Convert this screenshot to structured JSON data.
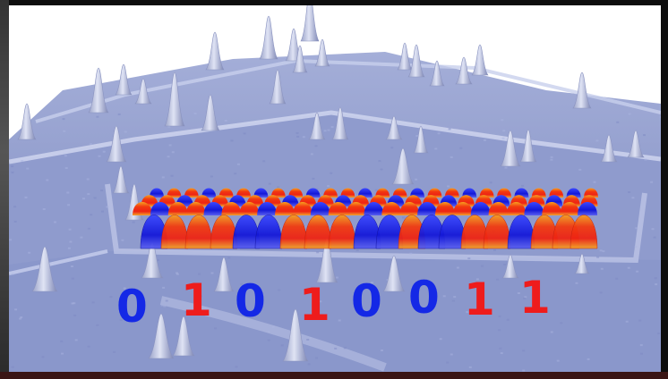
{
  "bits": [
    {
      "value": "0",
      "color": "#1428e6"
    },
    {
      "value": "1",
      "color": "#ee1c1c"
    },
    {
      "value": "0",
      "color": "#1428e6"
    },
    {
      "value": "1",
      "color": "#ee1c1c"
    },
    {
      "value": "0",
      "color": "#1428e6"
    },
    {
      "value": "0",
      "color": "#1428e6"
    },
    {
      "value": "1",
      "color": "#ee1c1c"
    },
    {
      "value": "1",
      "color": "#ee1c1c"
    }
  ],
  "colors": {
    "surface": "#8c98c8",
    "surface_light": "#b4bde0",
    "background": "#ffffff",
    "wave_blue": "#1a1ee0",
    "wave_red": "#f02010",
    "wave_orange": "#f39a18"
  }
}
